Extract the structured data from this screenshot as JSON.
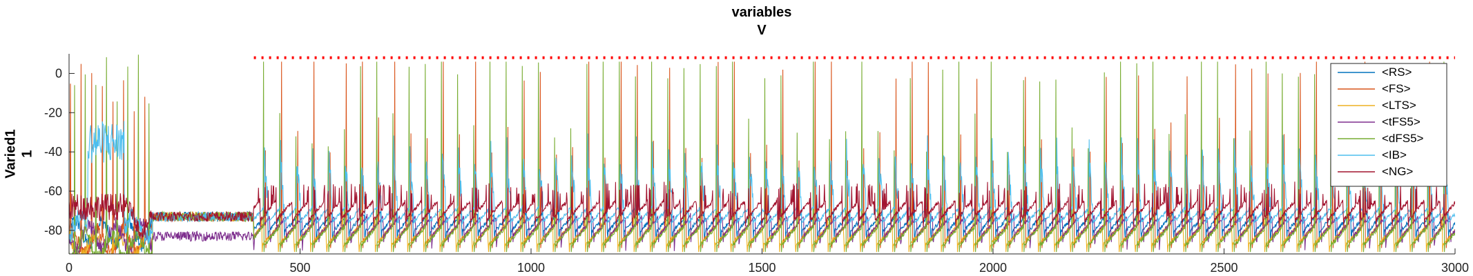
{
  "chart_data": {
    "type": "line",
    "title_lines": [
      "variables",
      "V"
    ],
    "ylabel_lines": [
      "Varied1",
      "1"
    ],
    "xlabel": "",
    "xlim": [
      0,
      3000
    ],
    "ylim": [
      -92,
      10
    ],
    "xticks": [
      0,
      500,
      1000,
      1500,
      2000,
      2500,
      3000
    ],
    "yticks": [
      0,
      -20,
      -40,
      -60,
      -80
    ],
    "grid": false,
    "legend_position": "top-right",
    "spike_period": 35,
    "series": [
      {
        "name": "<RS>",
        "color": "#0072BD",
        "baseline": -81,
        "spike_peak": -76,
        "phase": 5
      },
      {
        "name": "<FS>",
        "color": "#D95319",
        "baseline": -86,
        "spike_peak": 5,
        "phase": 10
      },
      {
        "name": "<LTS>",
        "color": "#EDB120",
        "baseline": -88,
        "spike_peak": -78,
        "phase": 18
      },
      {
        "name": "<tFS5>",
        "color": "#7E2F8E",
        "baseline": -83,
        "spike_peak": -81,
        "phase": 0
      },
      {
        "name": "<dFS5>",
        "color": "#77AC30",
        "baseline": -88,
        "spike_peak": 5,
        "phase": 14
      },
      {
        "name": "<IB>",
        "color": "#4DBEEE",
        "baseline": -78,
        "spike_peak": -40,
        "phase": 12
      },
      {
        "name": "<NG>",
        "color": "#A2142F",
        "baseline": -75,
        "spike_peak": -65,
        "phase": 22
      }
    ],
    "marker_line": {
      "style": "dotted",
      "color": "#FF0000",
      "x_start": 400,
      "x_end": 3000,
      "y": 8
    }
  }
}
